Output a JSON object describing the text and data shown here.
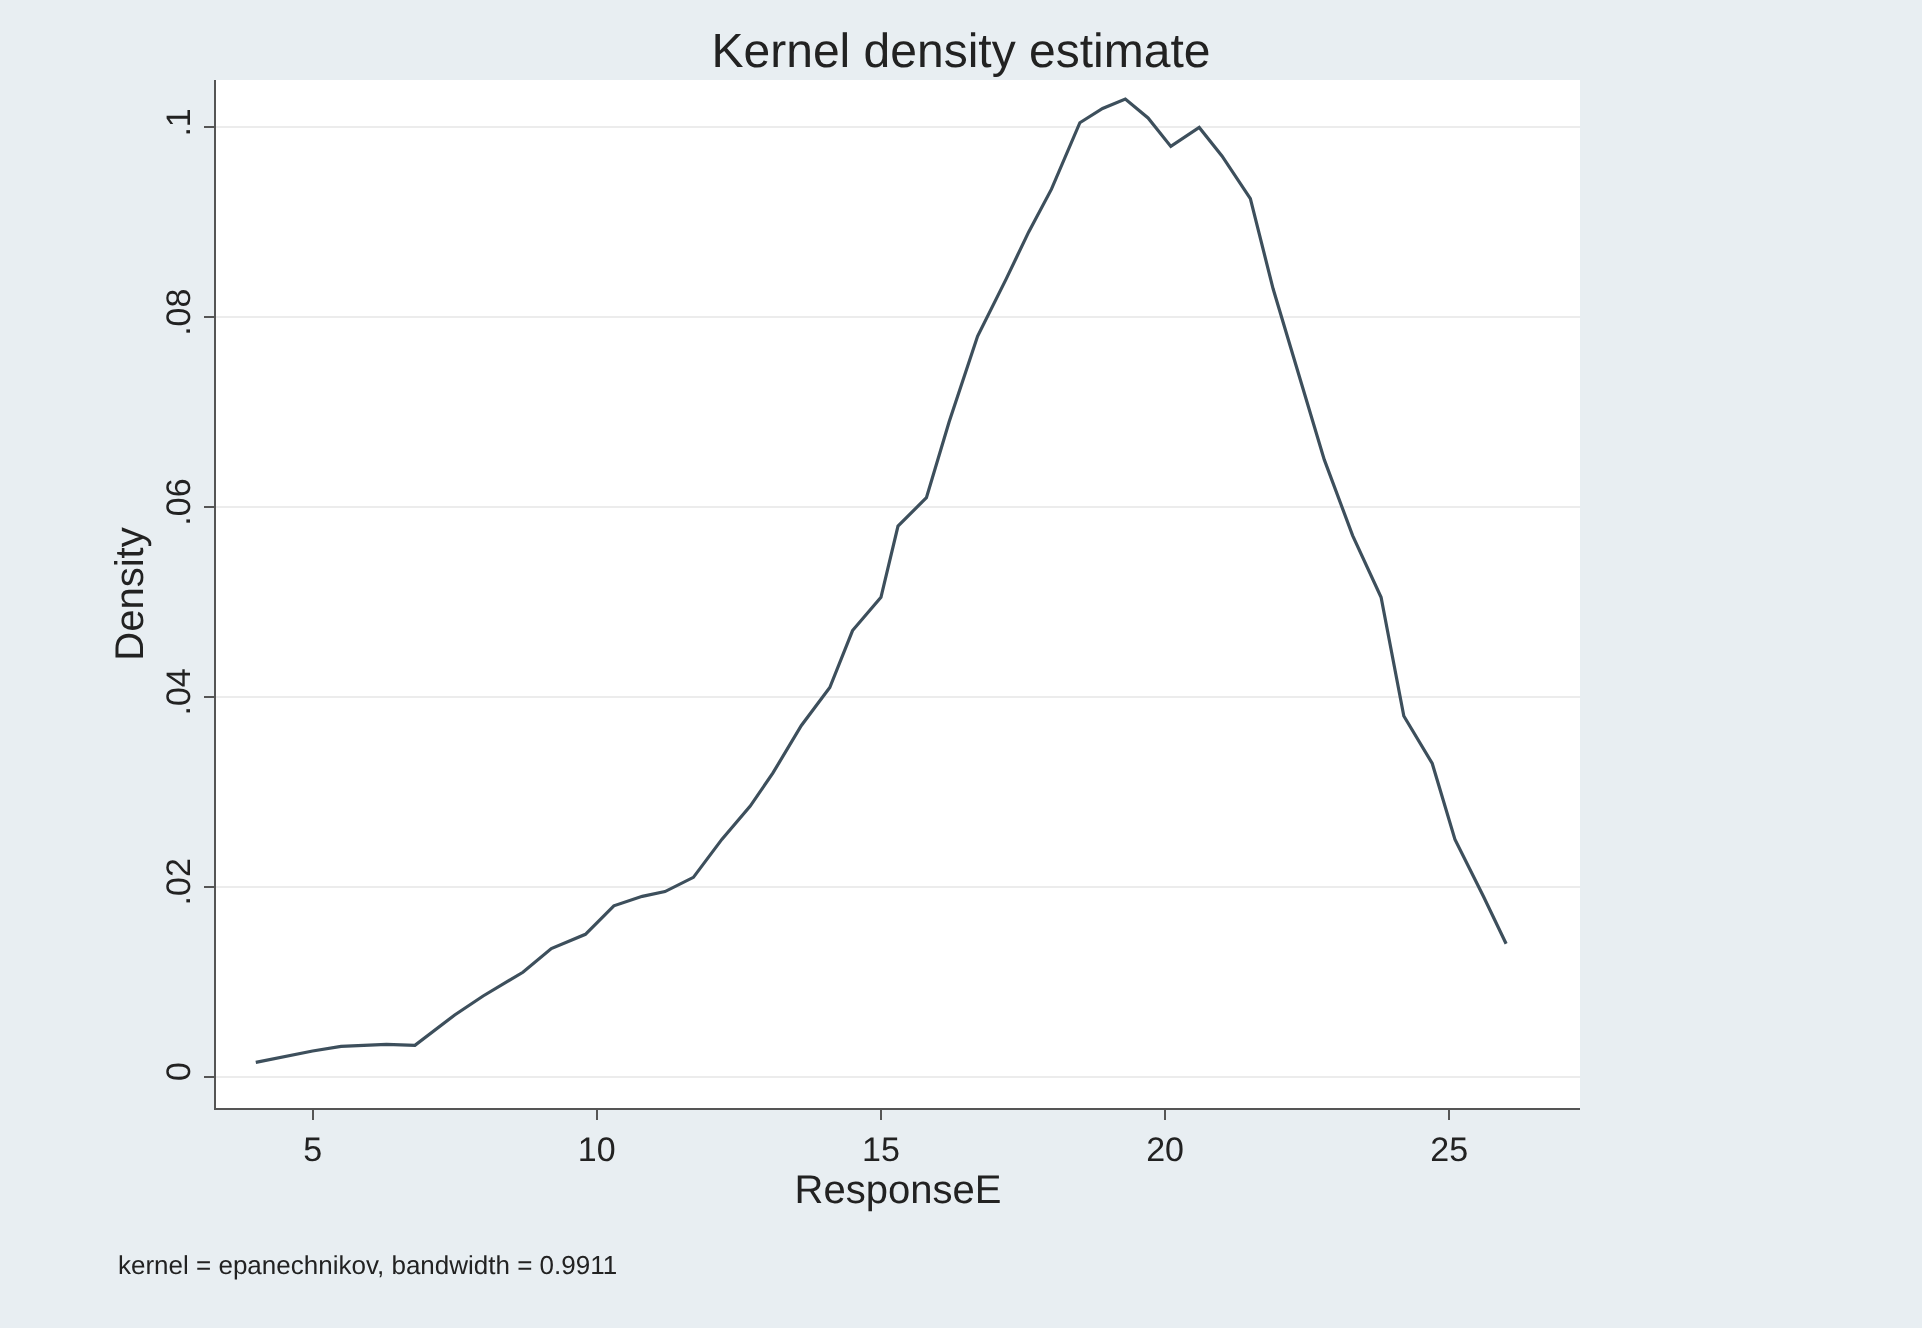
{
  "chart_data": {
    "type": "line",
    "title": "Kernel density estimate",
    "xlabel": "ResponseE",
    "ylabel": "Density",
    "annotations": [
      "kernel = epanechnikov, bandwidth = 0.9911"
    ],
    "x": [
      4,
      5,
      5.5,
      6.3,
      6.8,
      7.5,
      8,
      8.7,
      9.2,
      9.8,
      10.3,
      10.8,
      11.2,
      11.7,
      12.2,
      12.7,
      13.1,
      13.6,
      14.1,
      14.5,
      15,
      15.3,
      15.8,
      16.2,
      16.7,
      17.2,
      17.6,
      18,
      18.5,
      18.9,
      19.3,
      19.7,
      20.1,
      20.6,
      21,
      21.5,
      21.9,
      22.4,
      22.8,
      23.3,
      23.8,
      24.2,
      24.7,
      25.1,
      25.6,
      26
    ],
    "series": [
      {
        "color": "#3d4f5c",
        "values": [
          0.0015,
          0.0027,
          0.0032,
          0.0034,
          0.0033,
          0.0065,
          0.0085,
          0.011,
          0.0135,
          0.015,
          0.018,
          0.019,
          0.0195,
          0.021,
          0.025,
          0.0285,
          0.032,
          0.037,
          0.041,
          0.047,
          0.0505,
          0.058,
          0.061,
          0.069,
          0.078,
          0.084,
          0.089,
          0.0935,
          0.1005,
          0.102,
          0.103,
          0.101,
          0.098,
          0.1,
          0.097,
          0.0925,
          0.083,
          0.073,
          0.065,
          0.057,
          0.0505,
          0.038,
          0.033,
          0.025,
          0.019,
          0.014
        ]
      }
    ],
    "xlim": [
      3.3,
      27.3
    ],
    "ylim": [
      -0.0033,
      0.105
    ],
    "xticks": [
      5,
      10,
      15,
      20,
      25
    ],
    "yticks": [
      0,
      {
        "value": 0.02,
        "label": ".02"
      },
      {
        "value": 0.04,
        "label": ".04"
      },
      {
        "value": 0.06,
        "label": ".06"
      },
      {
        "value": 0.08,
        "label": ".08"
      },
      {
        "value": 0.1,
        "label": ".1"
      }
    ],
    "grid": "y",
    "line_style": "solid"
  }
}
